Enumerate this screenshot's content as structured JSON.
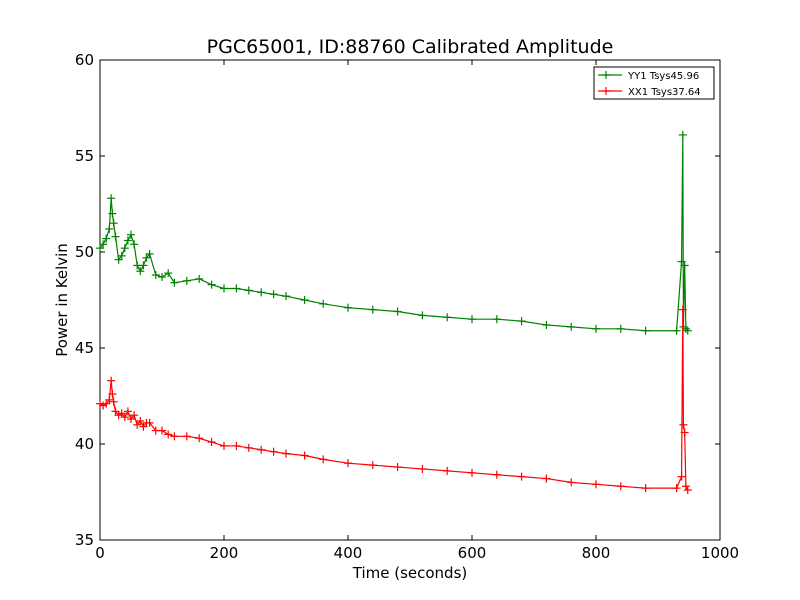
{
  "chart_data": {
    "type": "line",
    "title": "PGC65001, ID:88760 Calibrated Amplitude",
    "xlabel": "Time (seconds)",
    "ylabel": "Power in Kelvin",
    "xlim": [
      0,
      1000
    ],
    "ylim": [
      35,
      60
    ],
    "xticks": [
      "0",
      "200",
      "400",
      "600",
      "800",
      "1000"
    ],
    "yticks": [
      "35",
      "40",
      "45",
      "50",
      "55",
      "60"
    ],
    "legend_position": "top-right",
    "marker": "plus",
    "series": [
      {
        "name": "YY1 Tsys45.96",
        "color": "#008000",
        "x": [
          0,
          5,
          10,
          15,
          18,
          20,
          22,
          25,
          30,
          35,
          40,
          45,
          50,
          55,
          60,
          65,
          70,
          75,
          80,
          90,
          100,
          110,
          120,
          140,
          160,
          180,
          200,
          220,
          240,
          260,
          280,
          300,
          330,
          360,
          400,
          440,
          480,
          520,
          560,
          600,
          640,
          680,
          720,
          760,
          800,
          840,
          880,
          930,
          938,
          940,
          941,
          943,
          945,
          948
        ],
        "y": [
          50.2,
          50.4,
          50.7,
          51.2,
          52.8,
          52.0,
          51.5,
          50.8,
          49.6,
          49.8,
          50.2,
          50.6,
          50.9,
          50.4,
          49.3,
          49.0,
          49.3,
          49.7,
          49.9,
          48.8,
          48.7,
          48.9,
          48.4,
          48.5,
          48.6,
          48.3,
          48.1,
          48.1,
          48.0,
          47.9,
          47.8,
          47.7,
          47.5,
          47.3,
          47.1,
          47.0,
          46.9,
          46.7,
          46.6,
          46.5,
          46.5,
          46.4,
          46.2,
          46.1,
          46.0,
          46.0,
          45.9,
          45.9,
          49.5,
          56.1,
          46.1,
          49.3,
          46.0,
          45.9
        ]
      },
      {
        "name": "XX1 Tsys37.64",
        "color": "#ff0000",
        "x": [
          0,
          5,
          10,
          15,
          18,
          20,
          22,
          25,
          30,
          35,
          40,
          45,
          50,
          55,
          60,
          65,
          70,
          75,
          80,
          90,
          100,
          110,
          120,
          140,
          160,
          180,
          200,
          220,
          240,
          260,
          280,
          300,
          330,
          360,
          400,
          440,
          480,
          520,
          560,
          600,
          640,
          680,
          720,
          760,
          800,
          840,
          880,
          930,
          938,
          940,
          941,
          943,
          945,
          948
        ],
        "y": [
          42.1,
          42.0,
          42.1,
          42.3,
          43.3,
          42.6,
          42.2,
          41.7,
          41.5,
          41.6,
          41.4,
          41.7,
          41.3,
          41.5,
          41.0,
          41.2,
          40.9,
          41.1,
          41.1,
          40.7,
          40.7,
          40.5,
          40.4,
          40.4,
          40.3,
          40.1,
          39.9,
          39.9,
          39.8,
          39.7,
          39.6,
          39.5,
          39.4,
          39.2,
          39.0,
          38.9,
          38.8,
          38.7,
          38.6,
          38.5,
          38.4,
          38.3,
          38.2,
          38.0,
          37.9,
          37.8,
          37.7,
          37.7,
          38.3,
          47.0,
          41.0,
          40.6,
          37.8,
          37.6
        ]
      }
    ]
  }
}
